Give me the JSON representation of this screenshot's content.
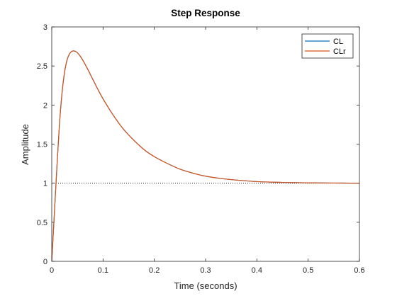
{
  "chart_data": {
    "type": "line",
    "title": "Step Response",
    "xlabel": "Time (seconds)",
    "ylabel": "Amplitude",
    "xlim": [
      0,
      0.6
    ],
    "ylim": [
      0,
      3
    ],
    "xticks": [
      0,
      0.1,
      0.2,
      0.3,
      0.4,
      0.5,
      0.6
    ],
    "xtick_labels": [
      "0",
      "0.1",
      "0.2",
      "0.3",
      "0.4",
      "0.5",
      "0.6"
    ],
    "yticks": [
      0,
      0.5,
      1,
      1.5,
      2,
      2.5,
      3
    ],
    "ytick_labels": [
      "0",
      "0.5",
      "1",
      "1.5",
      "2",
      "2.5",
      "3"
    ],
    "grid": false,
    "legend_position": "top-right",
    "reference_line": {
      "y": 1,
      "style": "dotted",
      "color": "#000000"
    },
    "series": [
      {
        "name": "CL",
        "color": "#0072BD",
        "x": [
          0,
          0.005,
          0.01,
          0.015,
          0.02,
          0.025,
          0.03,
          0.035,
          0.04,
          0.045,
          0.05,
          0.055,
          0.06,
          0.07,
          0.08,
          0.09,
          0.1,
          0.12,
          0.14,
          0.16,
          0.18,
          0.2,
          0.22,
          0.25,
          0.28,
          0.3,
          0.33,
          0.36,
          0.4,
          0.45,
          0.5,
          0.55,
          0.6
        ],
        "y": [
          0,
          0.6,
          1.2,
          1.75,
          2.15,
          2.42,
          2.58,
          2.66,
          2.69,
          2.69,
          2.67,
          2.63,
          2.58,
          2.46,
          2.33,
          2.2,
          2.08,
          1.87,
          1.69,
          1.55,
          1.43,
          1.34,
          1.27,
          1.18,
          1.12,
          1.09,
          1.06,
          1.04,
          1.02,
          1.01,
          1.005,
          1.002,
          1.0
        ]
      },
      {
        "name": "CLr",
        "color": "#D95319",
        "x": [
          0,
          0.005,
          0.01,
          0.015,
          0.02,
          0.025,
          0.03,
          0.035,
          0.04,
          0.045,
          0.05,
          0.055,
          0.06,
          0.07,
          0.08,
          0.09,
          0.1,
          0.12,
          0.14,
          0.16,
          0.18,
          0.2,
          0.22,
          0.25,
          0.28,
          0.3,
          0.33,
          0.36,
          0.4,
          0.45,
          0.5,
          0.55,
          0.6
        ],
        "y": [
          0,
          0.6,
          1.2,
          1.75,
          2.15,
          2.42,
          2.58,
          2.66,
          2.69,
          2.69,
          2.67,
          2.63,
          2.58,
          2.46,
          2.33,
          2.2,
          2.08,
          1.87,
          1.69,
          1.55,
          1.43,
          1.34,
          1.27,
          1.18,
          1.12,
          1.09,
          1.06,
          1.04,
          1.02,
          1.01,
          1.005,
          1.002,
          1.0
        ]
      }
    ]
  }
}
